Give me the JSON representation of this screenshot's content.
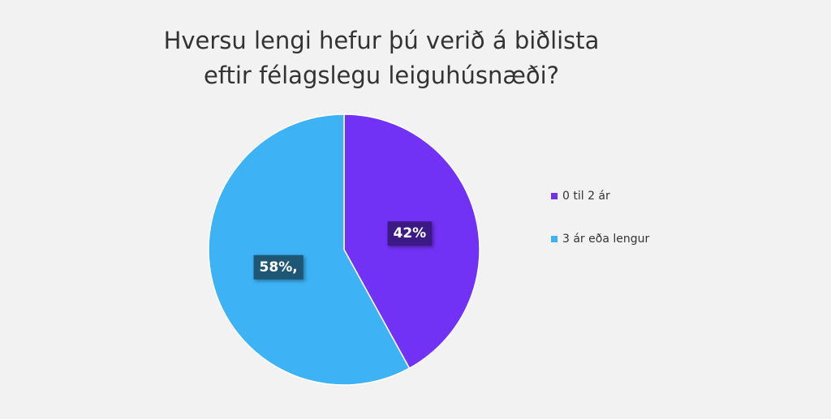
{
  "chart_data": {
    "type": "pie",
    "title": [
      "Hversu lengi hefur þú verið á biðlista",
      "eftir félagslegu leiguhúsnæði?"
    ],
    "categories": [
      "0 til 2 ár",
      "3 ár eða lengur"
    ],
    "values": [
      42,
      58
    ],
    "value_labels": [
      "42%",
      "58%,"
    ],
    "colors": [
      "#7232f6",
      "#3db2f4"
    ],
    "label_colors": [
      "#3b1a86",
      "#1d5775"
    ],
    "legend": "right"
  }
}
